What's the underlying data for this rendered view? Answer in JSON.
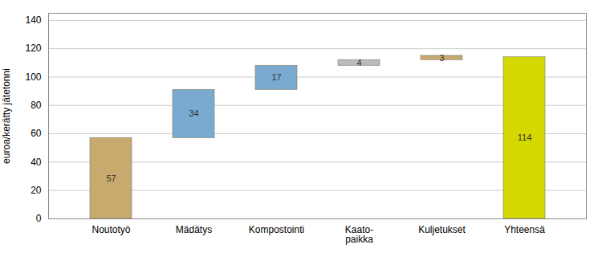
{
  "chart_data": {
    "type": "waterfall",
    "categories": [
      "Noutotyö",
      "Mädätys",
      "Kompostointi",
      "Kaato-\npaikka",
      "Kuljetukset",
      "Yhteensä"
    ],
    "values": [
      57,
      34,
      17,
      4,
      3,
      114
    ],
    "colors": [
      "#c8a96e",
      "#7aaad0",
      "#7aaad0",
      "#b8bcbc",
      "#c8a870",
      "#d4d800"
    ],
    "ylabel": "euroa/kerätty jätetonni",
    "ylim": [
      0,
      145
    ],
    "yticks": [
      0,
      20,
      40,
      60,
      80,
      100,
      120,
      140
    ],
    "grid": true,
    "data_labels": true
  }
}
